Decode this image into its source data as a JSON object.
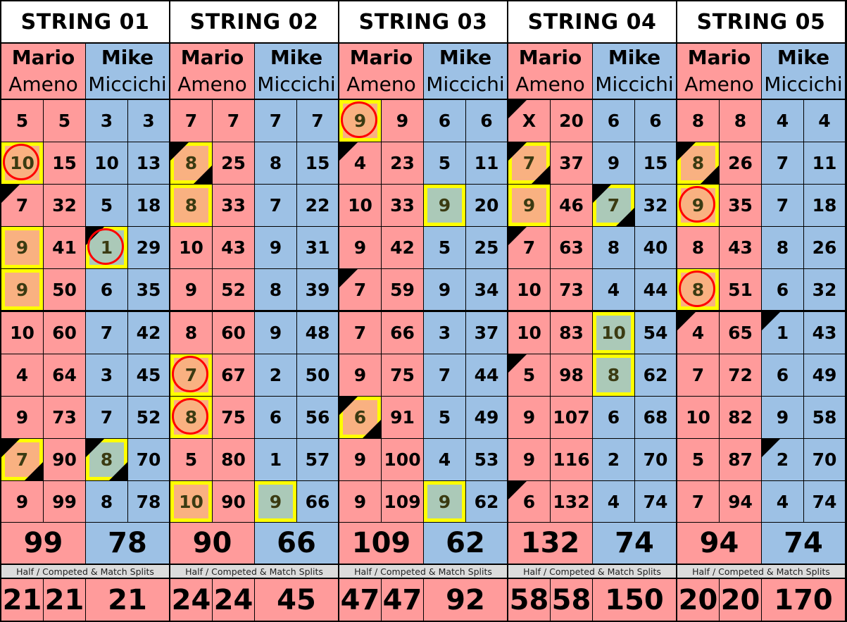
{
  "colors": {
    "player1": "#ff9b9b",
    "player2": "#9dc1e5",
    "highlight_border": "#ffff00",
    "circle": "#ff0000"
  },
  "split_label": "Half / Competed & Match Splits",
  "strings": [
    {
      "title": "STRING 01",
      "players": [
        {
          "first": "Mario",
          "last": "Ameno",
          "total": "99",
          "frames": [
            {
              "p": "5",
              "t": "5",
              "m": []
            },
            {
              "p": "10",
              "t": "15",
              "m": [
                "highlight",
                "circle"
              ]
            },
            {
              "p": "7",
              "t": "32",
              "m": [
                "corner-tl"
              ]
            },
            {
              "p": "9",
              "t": "41",
              "m": [
                "highlight"
              ]
            },
            {
              "p": "9",
              "t": "50",
              "m": [
                "highlight"
              ]
            },
            {
              "p": "10",
              "t": "60",
              "m": []
            },
            {
              "p": "4",
              "t": "64",
              "m": []
            },
            {
              "p": "9",
              "t": "73",
              "m": []
            },
            {
              "p": "7",
              "t": "90",
              "m": [
                "highlight",
                "corner-tl",
                "corner-br"
              ]
            },
            {
              "p": "9",
              "t": "99",
              "m": []
            }
          ]
        },
        {
          "first": "Mike",
          "last": "Miccichi",
          "total": "78",
          "frames": [
            {
              "p": "3",
              "t": "3",
              "m": []
            },
            {
              "p": "10",
              "t": "13",
              "m": []
            },
            {
              "p": "5",
              "t": "18",
              "m": []
            },
            {
              "p": "1",
              "t": "29",
              "m": [
                "highlight",
                "corner-tl",
                "circle"
              ]
            },
            {
              "p": "6",
              "t": "35",
              "m": []
            },
            {
              "p": "7",
              "t": "42",
              "m": []
            },
            {
              "p": "3",
              "t": "45",
              "m": []
            },
            {
              "p": "7",
              "t": "52",
              "m": []
            },
            {
              "p": "8",
              "t": "70",
              "m": [
                "highlight",
                "corner-tl",
                "corner-br"
              ]
            },
            {
              "p": "8",
              "t": "78",
              "m": []
            }
          ]
        }
      ],
      "splits": [
        "21",
        "21",
        "21"
      ]
    },
    {
      "title": "STRING 02",
      "players": [
        {
          "first": "Mario",
          "last": "Ameno",
          "total": "90",
          "frames": [
            {
              "p": "7",
              "t": "7",
              "m": []
            },
            {
              "p": "8",
              "t": "25",
              "m": [
                "highlight",
                "corner-tl",
                "corner-br"
              ]
            },
            {
              "p": "8",
              "t": "33",
              "m": [
                "highlight"
              ]
            },
            {
              "p": "10",
              "t": "43",
              "m": []
            },
            {
              "p": "9",
              "t": "52",
              "m": []
            },
            {
              "p": "8",
              "t": "60",
              "m": []
            },
            {
              "p": "7",
              "t": "67",
              "m": [
                "highlight",
                "circle"
              ]
            },
            {
              "p": "8",
              "t": "75",
              "m": [
                "highlight",
                "circle"
              ]
            },
            {
              "p": "5",
              "t": "80",
              "m": []
            },
            {
              "p": "10",
              "t": "90",
              "m": [
                "highlight"
              ]
            }
          ]
        },
        {
          "first": "Mike",
          "last": "Miccichi",
          "total": "66",
          "frames": [
            {
              "p": "7",
              "t": "7",
              "m": []
            },
            {
              "p": "8",
              "t": "15",
              "m": []
            },
            {
              "p": "7",
              "t": "22",
              "m": []
            },
            {
              "p": "9",
              "t": "31",
              "m": []
            },
            {
              "p": "8",
              "t": "39",
              "m": []
            },
            {
              "p": "9",
              "t": "48",
              "m": []
            },
            {
              "p": "2",
              "t": "50",
              "m": []
            },
            {
              "p": "6",
              "t": "56",
              "m": []
            },
            {
              "p": "1",
              "t": "57",
              "m": []
            },
            {
              "p": "9",
              "t": "66",
              "m": [
                "highlight"
              ]
            }
          ]
        }
      ],
      "splits": [
        "24",
        "24",
        "45"
      ]
    },
    {
      "title": "STRING 03",
      "players": [
        {
          "first": "Mario",
          "last": "Ameno",
          "total": "109",
          "frames": [
            {
              "p": "9",
              "t": "9",
              "m": [
                "highlight",
                "circle"
              ]
            },
            {
              "p": "4",
              "t": "23",
              "m": [
                "corner-tl"
              ]
            },
            {
              "p": "10",
              "t": "33",
              "m": []
            },
            {
              "p": "9",
              "t": "42",
              "m": []
            },
            {
              "p": "7",
              "t": "59",
              "m": [
                "corner-tl"
              ]
            },
            {
              "p": "7",
              "t": "66",
              "m": []
            },
            {
              "p": "9",
              "t": "75",
              "m": []
            },
            {
              "p": "6",
              "t": "91",
              "m": [
                "highlight",
                "corner-tl",
                "corner-br"
              ]
            },
            {
              "p": "9",
              "t": "100",
              "m": []
            },
            {
              "p": "9",
              "t": "109",
              "m": []
            }
          ]
        },
        {
          "first": "Mike",
          "last": "Miccichi",
          "total": "62",
          "frames": [
            {
              "p": "6",
              "t": "6",
              "m": []
            },
            {
              "p": "5",
              "t": "11",
              "m": []
            },
            {
              "p": "9",
              "t": "20",
              "m": [
                "highlight"
              ]
            },
            {
              "p": "5",
              "t": "25",
              "m": []
            },
            {
              "p": "9",
              "t": "34",
              "m": []
            },
            {
              "p": "3",
              "t": "37",
              "m": []
            },
            {
              "p": "7",
              "t": "44",
              "m": []
            },
            {
              "p": "5",
              "t": "49",
              "m": []
            },
            {
              "p": "4",
              "t": "53",
              "m": []
            },
            {
              "p": "9",
              "t": "62",
              "m": [
                "highlight"
              ]
            }
          ]
        }
      ],
      "splits": [
        "47",
        "47",
        "92"
      ]
    },
    {
      "title": "STRING 04",
      "players": [
        {
          "first": "Mario",
          "last": "Ameno",
          "total": "132",
          "frames": [
            {
              "p": "X",
              "t": "20",
              "m": [
                "corner-tl"
              ]
            },
            {
              "p": "7",
              "t": "37",
              "m": [
                "highlight",
                "corner-tl",
                "corner-br"
              ]
            },
            {
              "p": "9",
              "t": "46",
              "m": [
                "highlight"
              ]
            },
            {
              "p": "7",
              "t": "63",
              "m": [
                "corner-tl"
              ]
            },
            {
              "p": "10",
              "t": "73",
              "m": []
            },
            {
              "p": "10",
              "t": "83",
              "m": []
            },
            {
              "p": "5",
              "t": "98",
              "m": [
                "corner-tl"
              ]
            },
            {
              "p": "9",
              "t": "107",
              "m": []
            },
            {
              "p": "9",
              "t": "116",
              "m": []
            },
            {
              "p": "6",
              "t": "132",
              "m": [
                "corner-tl"
              ]
            }
          ]
        },
        {
          "first": "Mike",
          "last": "Miccichi",
          "total": "74",
          "frames": [
            {
              "p": "6",
              "t": "6",
              "m": []
            },
            {
              "p": "9",
              "t": "15",
              "m": []
            },
            {
              "p": "7",
              "t": "32",
              "m": [
                "highlight",
                "corner-tl",
                "corner-br"
              ]
            },
            {
              "p": "8",
              "t": "40",
              "m": []
            },
            {
              "p": "4",
              "t": "44",
              "m": []
            },
            {
              "p": "10",
              "t": "54",
              "m": [
                "highlight"
              ]
            },
            {
              "p": "8",
              "t": "62",
              "m": [
                "highlight"
              ]
            },
            {
              "p": "6",
              "t": "68",
              "m": []
            },
            {
              "p": "2",
              "t": "70",
              "m": []
            },
            {
              "p": "4",
              "t": "74",
              "m": []
            }
          ]
        }
      ],
      "splits": [
        "58",
        "58",
        "150"
      ]
    },
    {
      "title": "STRING 05",
      "players": [
        {
          "first": "Mario",
          "last": "Ameno",
          "total": "94",
          "frames": [
            {
              "p": "8",
              "t": "8",
              "m": []
            },
            {
              "p": "8",
              "t": "26",
              "m": [
                "highlight",
                "corner-tl",
                "corner-br"
              ]
            },
            {
              "p": "9",
              "t": "35",
              "m": [
                "highlight",
                "circle"
              ]
            },
            {
              "p": "8",
              "t": "43",
              "m": []
            },
            {
              "p": "8",
              "t": "51",
              "m": [
                "highlight",
                "circle"
              ]
            },
            {
              "p": "4",
              "t": "65",
              "m": [
                "corner-tl"
              ]
            },
            {
              "p": "7",
              "t": "72",
              "m": []
            },
            {
              "p": "10",
              "t": "82",
              "m": []
            },
            {
              "p": "5",
              "t": "87",
              "m": []
            },
            {
              "p": "7",
              "t": "94",
              "m": []
            }
          ]
        },
        {
          "first": "Mike",
          "last": "Miccichi",
          "total": "74",
          "frames": [
            {
              "p": "4",
              "t": "4",
              "m": []
            },
            {
              "p": "7",
              "t": "11",
              "m": []
            },
            {
              "p": "7",
              "t": "18",
              "m": []
            },
            {
              "p": "8",
              "t": "26",
              "m": []
            },
            {
              "p": "6",
              "t": "32",
              "m": []
            },
            {
              "p": "1",
              "t": "43",
              "m": [
                "corner-tl"
              ]
            },
            {
              "p": "6",
              "t": "49",
              "m": []
            },
            {
              "p": "9",
              "t": "58",
              "m": []
            },
            {
              "p": "2",
              "t": "70",
              "m": [
                "corner-tl"
              ]
            },
            {
              "p": "4",
              "t": "74",
              "m": []
            }
          ]
        }
      ],
      "splits": [
        "20",
        "20",
        "170"
      ]
    }
  ]
}
